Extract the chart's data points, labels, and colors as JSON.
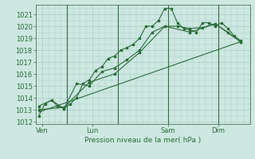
{
  "bg_color": "#cce8e0",
  "grid_color": "#aacfc8",
  "line_color": "#2d6b3c",
  "text_color": "#2d6b3c",
  "xlabel_text": "Pression niveau de la mer( hPa )",
  "ylim": [
    1011.8,
    1021.8
  ],
  "yticks": [
    1012,
    1013,
    1014,
    1015,
    1016,
    1017,
    1018,
    1019,
    1020,
    1021
  ],
  "xtick_labels": [
    "Ven",
    "Lun",
    "Sam",
    "Dim"
  ],
  "xtick_positions": [
    6,
    54,
    126,
    174
  ],
  "total_hours": 204,
  "xlim": [
    0,
    204
  ],
  "vline_positions": [
    30,
    78,
    126,
    174
  ],
  "series1": {
    "x": [
      3,
      9,
      15,
      21,
      27,
      33,
      39,
      45,
      51,
      57,
      63,
      69,
      75,
      81,
      87,
      93,
      99,
      105,
      111,
      117,
      123,
      129,
      135,
      141,
      147,
      153,
      159,
      165,
      171,
      177,
      183,
      189,
      195
    ],
    "y": [
      1012.5,
      1013.5,
      1013.8,
      1013.3,
      1013.1,
      1013.5,
      1014.0,
      1015.2,
      1015.5,
      1016.3,
      1016.6,
      1017.3,
      1017.5,
      1018.0,
      1018.2,
      1018.5,
      1019.0,
      1020.0,
      1020.0,
      1020.5,
      1021.5,
      1021.5,
      1020.3,
      1019.8,
      1019.7,
      1019.5,
      1020.3,
      1020.3,
      1020.0,
      1020.3,
      1019.8,
      1019.2,
      1018.8
    ]
  },
  "series2": {
    "x": [
      3,
      15,
      27,
      39,
      51,
      63,
      75,
      87,
      99,
      111,
      123,
      135,
      147,
      159,
      171,
      183,
      195
    ],
    "y": [
      1013.3,
      1013.8,
      1013.1,
      1015.2,
      1015.0,
      1016.2,
      1016.5,
      1017.2,
      1018.0,
      1019.5,
      1020.0,
      1020.0,
      1019.8,
      1019.9,
      1020.2,
      1019.5,
      1018.7
    ]
  },
  "series3": {
    "x": [
      3,
      27,
      51,
      75,
      99,
      123,
      147,
      171,
      195
    ],
    "y": [
      1013.0,
      1013.2,
      1015.3,
      1016.0,
      1017.8,
      1020.0,
      1019.5,
      1020.2,
      1018.7
    ]
  },
  "series_linear": {
    "x": [
      3,
      195
    ],
    "y": [
      1012.8,
      1018.7
    ]
  }
}
